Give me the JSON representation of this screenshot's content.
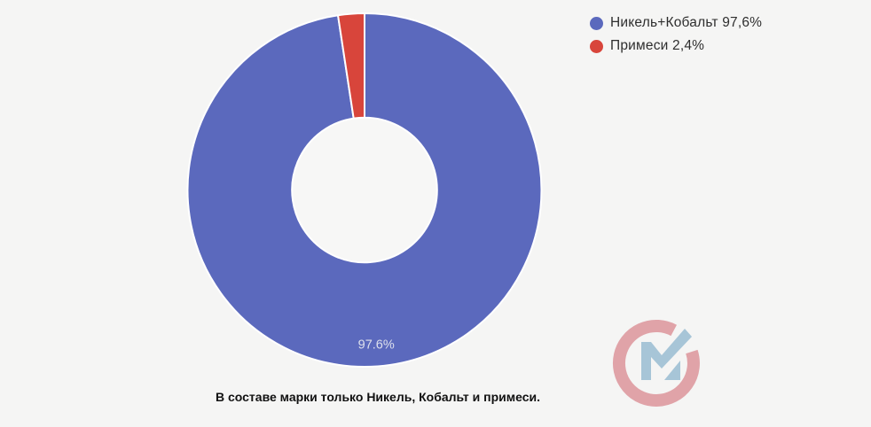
{
  "page": {
    "background_color": "#f5f5f4"
  },
  "chart_data": {
    "type": "pie",
    "subtype": "donut",
    "start_angle_deg": 0,
    "direction": "clockwise",
    "total": 100,
    "slices": [
      {
        "name": "Никель+Кобальт",
        "value": 97.6,
        "color": "#5b69bd",
        "data_label": "97.6%",
        "legend_label": "Никель+Кобальт 97,6%"
      },
      {
        "name": "Примеси",
        "value": 2.4,
        "color": "#d8453b",
        "data_label": "",
        "legend_label": "Примеси 2,4%"
      }
    ],
    "hole_ratio": 0.41,
    "hole_color": "#f7f7f6",
    "slice_border_color": "#ffffff",
    "data_label_color": "#dde0ec",
    "legend_position": "top-right",
    "caption": "В составе марки только Никель, Кобальт и примеси."
  },
  "watermark": {
    "name": "CM monogram",
    "c_color": "#e0a3a8",
    "m_color": "#a7c5d7"
  }
}
